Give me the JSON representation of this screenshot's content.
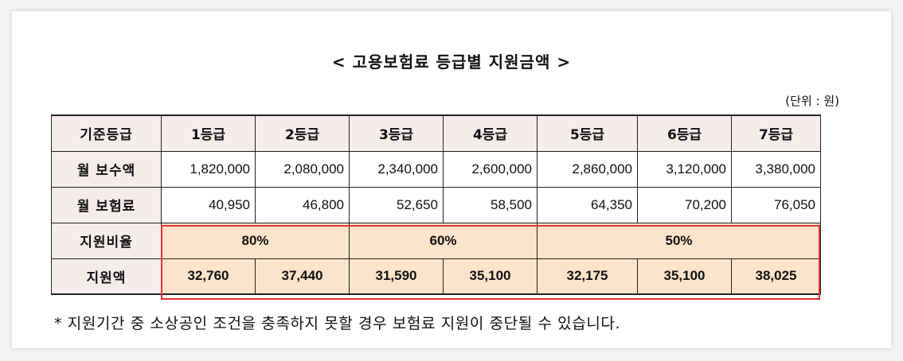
{
  "title": "< 고용보험료 등급별 지원금액 >",
  "unit": "(단위 : 원)",
  "table": {
    "header": [
      "기준등급",
      "1등급",
      "2등급",
      "3등급",
      "4등급",
      "5등급",
      "6등급",
      "7등급"
    ],
    "monthly_pay": {
      "label": "월 보수액",
      "values": [
        "1,820,000",
        "2,080,000",
        "2,340,000",
        "2,600,000",
        "2,860,000",
        "3,120,000",
        "3,380,000"
      ]
    },
    "monthly_premium": {
      "label": "월 보험료",
      "values": [
        "40,950",
        "46,800",
        "52,650",
        "58,500",
        "64,350",
        "70,200",
        "76,050"
      ]
    },
    "support_rate": {
      "label": "지원비율",
      "groups": [
        "80%",
        "60%",
        "50%"
      ]
    },
    "support_amount": {
      "label": "지원액",
      "values": [
        "32,760",
        "37,440",
        "31,590",
        "35,100",
        "32,175",
        "35,100",
        "38,025"
      ]
    }
  },
  "note": "* 지원기간 중 소상공인 조건을 충족하지 못할 경우 보험료 지원이 중단될 수 있습니다.",
  "colors": {
    "header_bg": "#f5ecec",
    "highlight_bg": "#fbe4c9",
    "highlight_border": "#e53333"
  }
}
